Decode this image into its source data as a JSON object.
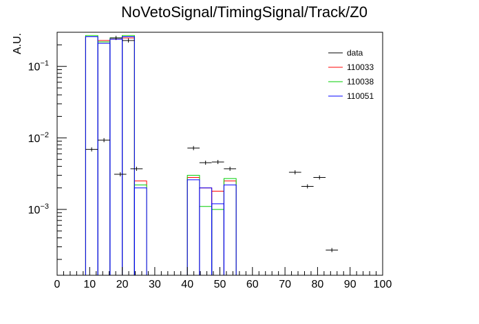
{
  "chart_data": {
    "type": "histogram",
    "title": "NoVetoSignal/TimingSignal/Track/Z0",
    "xlabel": "",
    "ylabel": "A.U.",
    "xlim": [
      0,
      100
    ],
    "ylim": [
      0.00012,
      0.3
    ],
    "yscale": "log",
    "grid": false,
    "legend_position": "top-right",
    "bin_width": 3.75,
    "x_ticks": [
      "0",
      "10",
      "20",
      "30",
      "40",
      "50",
      "60",
      "70",
      "80",
      "90",
      "100"
    ],
    "y_ticks": [
      {
        "base": "10",
        "exp": "−1",
        "value": 0.1
      },
      {
        "base": "10",
        "exp": "−2",
        "value": 0.01
      },
      {
        "base": "10",
        "exp": "−3",
        "value": 0.001
      }
    ],
    "series": [
      {
        "name": "110033",
        "color": "#ff0000",
        "style": "step",
        "bins": [
          {
            "x0": 8.75,
            "y": 0.26
          },
          {
            "x0": 12.5,
            "y": 0.23
          },
          {
            "x0": 16.25,
            "y": 0.24
          },
          {
            "x0": 20.0,
            "y": 0.25
          },
          {
            "x0": 23.75,
            "y": 0.0025
          },
          {
            "x0": 40.0,
            "y": 0.0028
          },
          {
            "x0": 43.75,
            "y": 0.002
          },
          {
            "x0": 47.5,
            "y": 0.0018
          },
          {
            "x0": 51.25,
            "y": 0.0025
          }
        ]
      },
      {
        "name": "110038",
        "color": "#00cc00",
        "style": "step",
        "bins": [
          {
            "x0": 8.75,
            "y": 0.27
          },
          {
            "x0": 12.5,
            "y": 0.22
          },
          {
            "x0": 16.25,
            "y": 0.25
          },
          {
            "x0": 20.0,
            "y": 0.27
          },
          {
            "x0": 23.75,
            "y": 0.0022
          },
          {
            "x0": 40.0,
            "y": 0.003
          },
          {
            "x0": 43.75,
            "y": 0.0011
          },
          {
            "x0": 47.5,
            "y": 0.001
          },
          {
            "x0": 51.25,
            "y": 0.0027
          }
        ]
      },
      {
        "name": "110051",
        "color": "#0000ff",
        "style": "step",
        "bins": [
          {
            "x0": 8.75,
            "y": 0.26
          },
          {
            "x0": 12.5,
            "y": 0.21
          },
          {
            "x0": 16.25,
            "y": 0.24
          },
          {
            "x0": 20.0,
            "y": 0.26
          },
          {
            "x0": 23.75,
            "y": 0.002
          },
          {
            "x0": 40.0,
            "y": 0.0026
          },
          {
            "x0": 43.75,
            "y": 0.002
          },
          {
            "x0": 47.5,
            "y": 0.0012
          },
          {
            "x0": 51.25,
            "y": 0.0022
          }
        ]
      },
      {
        "name": "data",
        "color": "#000000",
        "style": "points",
        "points": [
          {
            "x": 10.6,
            "y": 0.0069
          },
          {
            "x": 14.4,
            "y": 0.0093
          },
          {
            "x": 18.1,
            "y": 0.25
          },
          {
            "x": 19.4,
            "y": 0.0031
          },
          {
            "x": 21.9,
            "y": 0.23
          },
          {
            "x": 24.4,
            "y": 0.0037
          },
          {
            "x": 41.9,
            "y": 0.0072
          },
          {
            "x": 45.6,
            "y": 0.0045
          },
          {
            "x": 49.4,
            "y": 0.0046
          },
          {
            "x": 53.1,
            "y": 0.0037
          },
          {
            "x": 73.1,
            "y": 0.0033
          },
          {
            "x": 76.9,
            "y": 0.0021
          },
          {
            "x": 80.6,
            "y": 0.0028
          },
          {
            "x": 84.4,
            "y": 0.00027
          }
        ]
      }
    ],
    "legend": [
      {
        "label": "data",
        "color": "#000000"
      },
      {
        "label": "110033",
        "color": "#ff0000"
      },
      {
        "label": "110038",
        "color": "#00cc00"
      },
      {
        "label": "110051",
        "color": "#0000ff"
      }
    ]
  }
}
